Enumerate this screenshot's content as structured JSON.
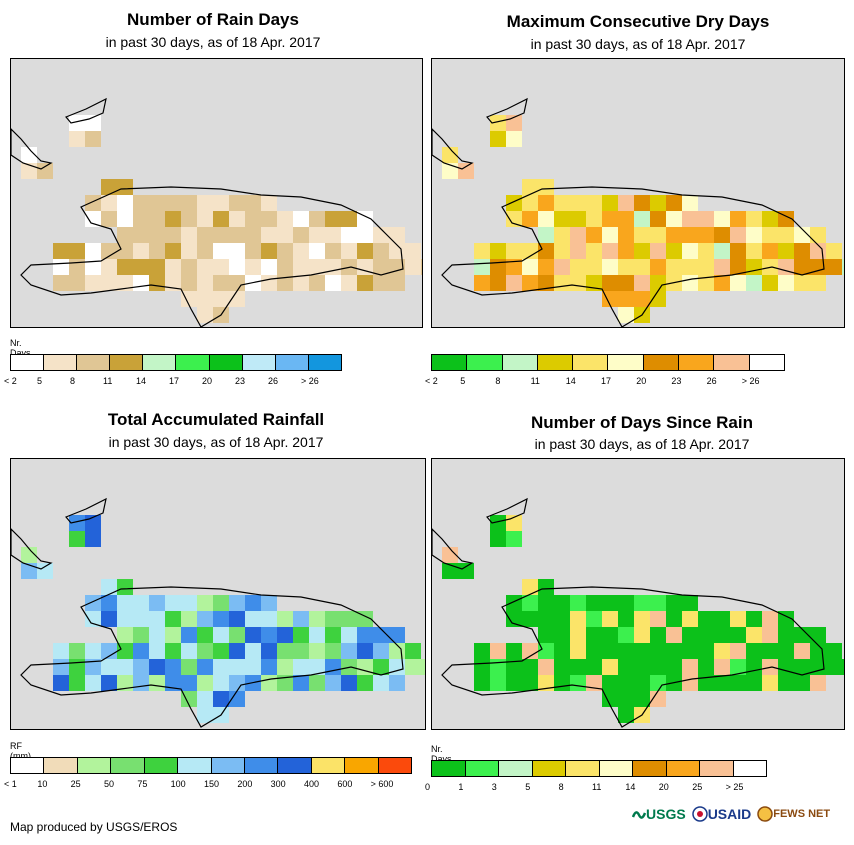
{
  "footer": {
    "credit": "Map produced by USGS/EROS"
  },
  "logos": {
    "usgs": "USGS",
    "usaid": "USAID",
    "fews": "FEWS NET"
  },
  "panels": [
    {
      "title": "Number of Rain Days",
      "subtitle": "in past 30 days, as of 18 Apr. 2017",
      "legend_title": "Nr. Days",
      "legend_colors": [
        "#ffffff",
        "#f5e3c8",
        "#e0c695",
        "#c9a238",
        "#c3f5c7",
        "#3cf04e",
        "#0cc11a",
        "#bfeaf7",
        "#6ab7f3",
        "#1396de"
      ],
      "legend_labels": [
        "< 2",
        "5",
        "8",
        "11",
        "14",
        "17",
        "20",
        "23",
        "26",
        "> 26"
      ],
      "dominant": [
        1,
        2,
        2,
        3,
        1,
        0
      ]
    },
    {
      "title": "Maximum Consecutive Dry Days",
      "subtitle": "in past 30 days, as of 18 Apr. 2017",
      "legend_title": "",
      "legend_colors": [
        "#0cc11a",
        "#3cf04e",
        "#c3f5c7",
        "#dccb00",
        "#fbe469",
        "#fefdc8",
        "#de8d00",
        "#f9a61d",
        "#f9c195",
        "#ffffff"
      ],
      "legend_labels": [
        "< 2",
        "5",
        "8",
        "11",
        "14",
        "17",
        "20",
        "23",
        "26",
        "> 26"
      ],
      "dominant": [
        5,
        4,
        6,
        7,
        4,
        3,
        8,
        2
      ]
    },
    {
      "title": "Total Accumulated Rainfall",
      "subtitle": "in past 30 days, as of 18 Apr. 2017",
      "legend_title": "RF (mm)",
      "legend_colors": [
        "#ffffff",
        "#f1dcb9",
        "#b2f39c",
        "#78e070",
        "#3ed23e",
        "#b6e9f5",
        "#7bbcf3",
        "#3f8de9",
        "#2363d9",
        "#fbe368",
        "#f9a600",
        "#fb4a0c"
      ],
      "legend_labels": [
        "< 1",
        "10",
        "25",
        "50",
        "75",
        "100",
        "150",
        "200",
        "300",
        "400",
        "600",
        "> 600"
      ],
      "dominant": [
        6,
        5,
        7,
        4,
        2,
        8,
        3,
        5
      ]
    },
    {
      "title": "Number of Days Since Rain",
      "subtitle": "in past 30 days, as of 18 Apr. 2017",
      "legend_title": "Nr. Days",
      "legend_colors": [
        "#0cc11a",
        "#3cf04e",
        "#c3f5c7",
        "#dccb00",
        "#fbe469",
        "#fefdc8",
        "#de8d00",
        "#f9a61d",
        "#f9c195",
        "#ffffff"
      ],
      "legend_labels": [
        "0",
        "1",
        "3",
        "5",
        "8",
        "11",
        "14",
        "20",
        "25",
        "> 25"
      ],
      "dominant": [
        0,
        0,
        0,
        1,
        0,
        4,
        0,
        8
      ]
    }
  ]
}
